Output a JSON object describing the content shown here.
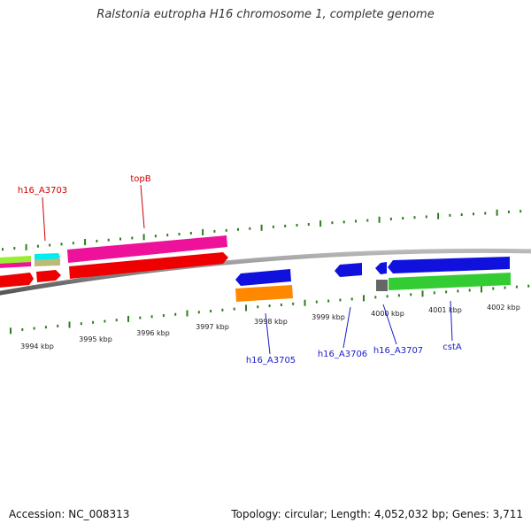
{
  "title": "Ralstonia eutropha H16 chromosome 1, complete genome",
  "footer": {
    "accession": "Accession: NC_008313",
    "summary": "Topology: circular; Length: 4,052,032 bp; Genes: 3,711"
  },
  "colors": {
    "backbone": "#8a8a8a",
    "tick": "#2e7d1e",
    "forward_label": "#cc0000",
    "reverse_label": "#1a1acc",
    "red": "#ee0000",
    "pink": "#ee1199",
    "blue": "#1111dd",
    "green": "#33cc33",
    "orange": "#ff8800",
    "cyan": "#00eeee",
    "lime": "#99ee33",
    "khaki": "#bbbb77",
    "gray": "#666666"
  },
  "scale": {
    "labels": [
      "3994 kbp",
      "3995 kbp",
      "3996 kbp",
      "3997 kbp",
      "3998 kbp",
      "3999 kbp",
      "4000 kbp",
      "4001 kbp",
      "4002 kbp"
    ]
  },
  "genes_labeled": [
    {
      "name": "h16_A3703",
      "strand": "forward"
    },
    {
      "name": "topB",
      "strand": "forward"
    },
    {
      "name": "h16_A3705",
      "strand": "reverse"
    },
    {
      "name": "h16_A3706",
      "strand": "reverse"
    },
    {
      "name": "h16_A3707",
      "strand": "reverse"
    },
    {
      "name": "cstA",
      "strand": "reverse"
    }
  ]
}
